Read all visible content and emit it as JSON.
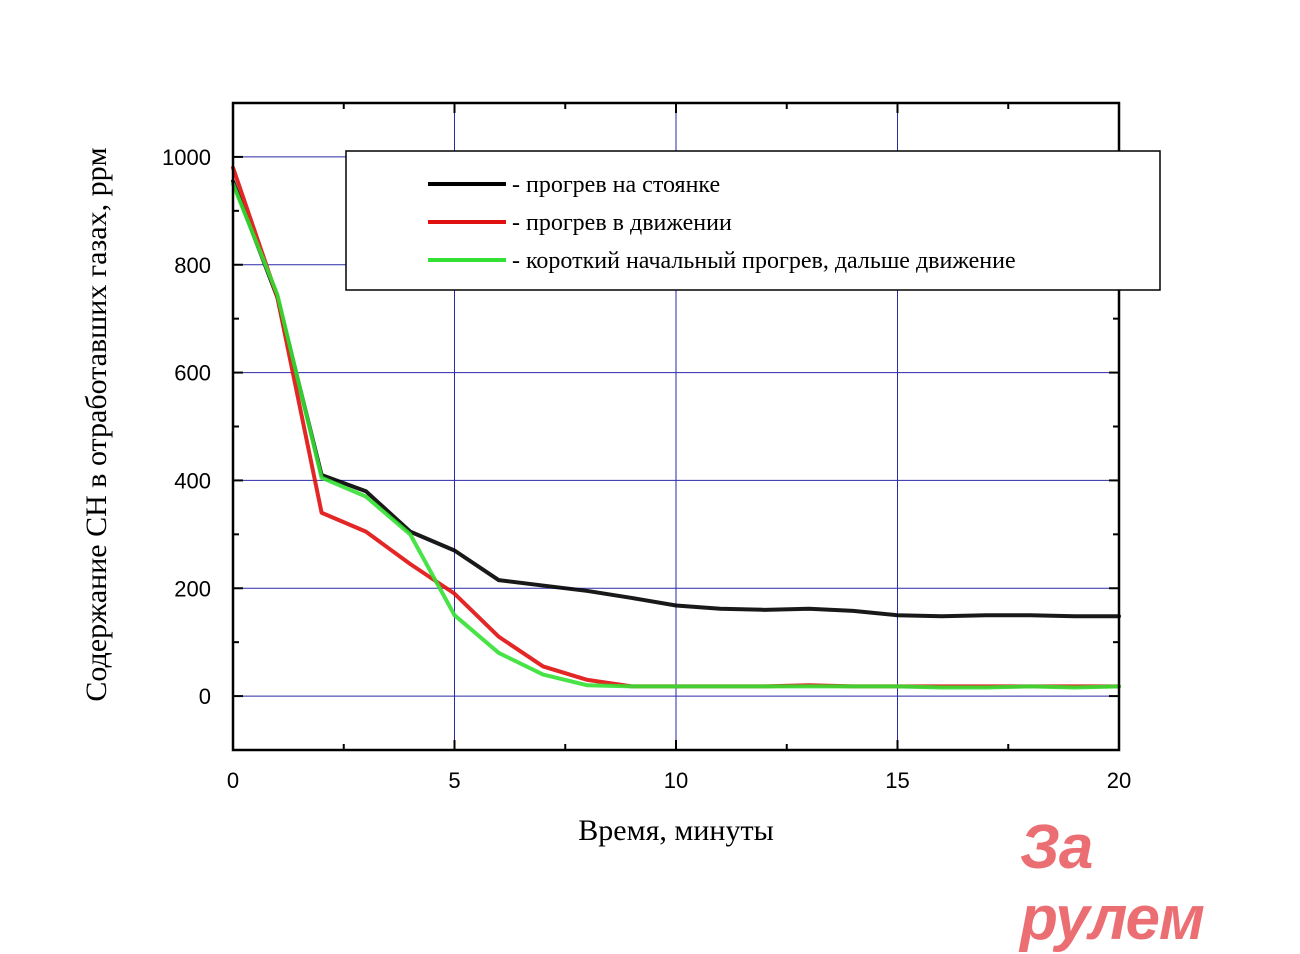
{
  "chart_data": {
    "type": "line",
    "xlabel": "Время, минуты",
    "ylabel": "Содержание CH в отработавших газах, ppм",
    "xlim": [
      0,
      20
    ],
    "ylim": [
      -100,
      1100
    ],
    "xticks": [
      0,
      5,
      10,
      15,
      20
    ],
    "yticks": [
      0,
      200,
      400,
      600,
      800,
      1000
    ],
    "grid": true,
    "legend_position": "top-right",
    "series": [
      {
        "name": "- прогрев на стоянке",
        "color": "#000000",
        "x": [
          0,
          1,
          2,
          3,
          4,
          5,
          6,
          7,
          8,
          9,
          10,
          11,
          12,
          13,
          14,
          15,
          16,
          17,
          18,
          19,
          20
        ],
        "y": [
          955,
          740,
          410,
          380,
          305,
          270,
          215,
          205,
          195,
          182,
          168,
          162,
          160,
          162,
          158,
          150,
          148,
          150,
          150,
          148,
          148
        ]
      },
      {
        "name": "- прогрев в движении",
        "color": "#e01010",
        "x": [
          0,
          1,
          2,
          3,
          4,
          5,
          6,
          7,
          8,
          9,
          10,
          11,
          12,
          13,
          14,
          15,
          16,
          17,
          18,
          19,
          20
        ],
        "y": [
          980,
          740,
          340,
          305,
          245,
          190,
          110,
          55,
          30,
          18,
          18,
          18,
          18,
          20,
          18,
          18,
          18,
          18,
          18,
          18,
          18
        ]
      },
      {
        "name": "- короткий начальный прогрев, дальше движение",
        "color": "#33e033",
        "x": [
          0,
          1,
          2,
          3,
          4,
          5,
          6,
          7,
          8,
          9,
          10,
          11,
          12,
          13,
          14,
          15,
          16,
          17,
          18,
          19,
          20
        ],
        "y": [
          950,
          745,
          405,
          370,
          300,
          150,
          80,
          40,
          20,
          18,
          18,
          18,
          18,
          18,
          18,
          18,
          16,
          16,
          18,
          16,
          18
        ]
      }
    ]
  },
  "watermark": "За рулем"
}
